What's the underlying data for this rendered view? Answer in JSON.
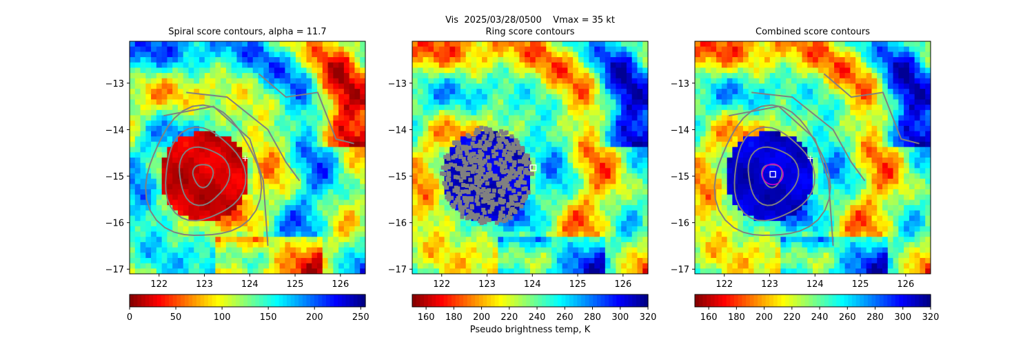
{
  "figure": {
    "suptitle": "Vis  2025/03/28/0500    Vmax = 35 kt",
    "colorbar_label": "Pseudo brightness temp, K",
    "colors": {
      "contour": "#808080",
      "marker": "#ffffff",
      "circle": "#cc00cc"
    }
  },
  "chart_data": [
    {
      "type": "heatmap",
      "title": "Spiral score contours, alpha = 11.7",
      "colormap": "jet",
      "xlim": [
        121.35,
        126.55
      ],
      "ylim": [
        -17.1,
        -12.1
      ],
      "xticks": [
        122,
        123,
        124,
        125,
        126
      ],
      "yticks": [
        -13,
        -14,
        -15,
        -16,
        -17
      ],
      "colorbar": {
        "range": [
          0,
          255
        ],
        "ticks": [
          0,
          50,
          100,
          150,
          200,
          250
        ],
        "reversed": true
      },
      "markers": [
        {
          "kind": "plus",
          "x": 123.9,
          "y": -14.62
        }
      ],
      "contour_center": [
        122.97,
        -14.98
      ]
    },
    {
      "type": "heatmap",
      "title": "Ring score contours",
      "colormap": "jet",
      "xlim": [
        121.35,
        126.55
      ],
      "ylim": [
        -17.1,
        -12.1
      ],
      "xticks": [
        122,
        123,
        124,
        125,
        126
      ],
      "yticks": [
        -13,
        -14,
        -15,
        -16,
        -17
      ],
      "colorbar": {
        "range": [
          150,
          320
        ],
        "ticks": [
          160,
          180,
          200,
          220,
          240,
          260,
          280,
          300,
          320
        ],
        "reversed": true
      },
      "markers": [
        {
          "kind": "square",
          "x": 124.02,
          "y": -14.82
        }
      ],
      "ring_region": {
        "center": [
          123.0,
          -15.0
        ],
        "radius_deg": 1.0
      }
    },
    {
      "type": "heatmap",
      "title": "Combined score contours",
      "colormap": "jet",
      "xlim": [
        121.35,
        126.55
      ],
      "ylim": [
        -17.1,
        -12.1
      ],
      "xticks": [
        122,
        123,
        124,
        125,
        126
      ],
      "yticks": [
        -13,
        -14,
        -15,
        -16,
        -17
      ],
      "colorbar": {
        "range": [
          150,
          320
        ],
        "ticks": [
          160,
          180,
          200,
          220,
          240,
          260,
          280,
          300,
          320
        ],
        "reversed": true
      },
      "markers": [
        {
          "kind": "plus",
          "x": 123.9,
          "y": -14.62
        },
        {
          "kind": "square",
          "x": 123.07,
          "y": -14.96
        },
        {
          "kind": "circle",
          "x": 123.07,
          "y": -14.96
        }
      ],
      "contour_center": [
        123.05,
        -14.98
      ]
    }
  ]
}
